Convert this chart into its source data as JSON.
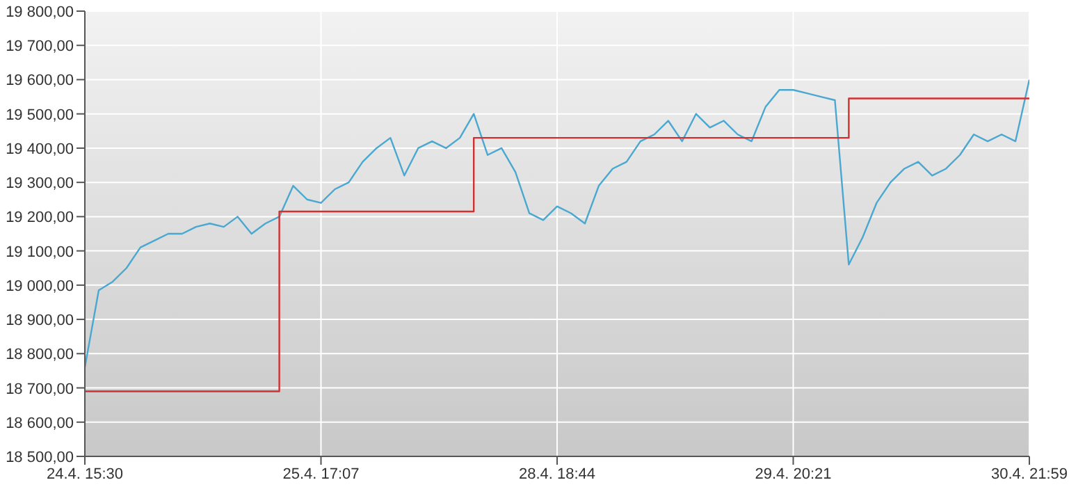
{
  "chart_data": {
    "type": "line",
    "grid": true,
    "marker": "none",
    "ylim": [
      18500,
      19800
    ],
    "categories": [
      "24.4. 15:30",
      null,
      null,
      null,
      null,
      null,
      null,
      null,
      null,
      null,
      null,
      null,
      null,
      null,
      null,
      null,
      null,
      "25.4. 17:07",
      null,
      null,
      null,
      null,
      null,
      null,
      null,
      null,
      null,
      null,
      null,
      null,
      null,
      null,
      null,
      null,
      "28.4. 18:44",
      null,
      null,
      null,
      null,
      null,
      null,
      null,
      null,
      null,
      null,
      null,
      null,
      null,
      null,
      null,
      null,
      "29.4. 20:21",
      null,
      null,
      null,
      null,
      null,
      null,
      null,
      null,
      null,
      null,
      null,
      null,
      null,
      null,
      null,
      null,
      "30.4. 21:59"
    ],
    "yticks": [
      {
        "value": 18500,
        "label": "18 500,00"
      },
      {
        "value": 18600,
        "label": "18 600,00"
      },
      {
        "value": 18700,
        "label": "18 700,00"
      },
      {
        "value": 18800,
        "label": "18 800,00"
      },
      {
        "value": 18900,
        "label": "18 900,00"
      },
      {
        "value": 19000,
        "label": "19 000,00"
      },
      {
        "value": 19100,
        "label": "19 100,00"
      },
      {
        "value": 19200,
        "label": "19 200,00"
      },
      {
        "value": 19300,
        "label": "19 300,00"
      },
      {
        "value": 19400,
        "label": "19 400,00"
      },
      {
        "value": 19500,
        "label": "19 500,00"
      },
      {
        "value": 19600,
        "label": "19 600,00"
      },
      {
        "value": 19700,
        "label": "19 700,00"
      },
      {
        "value": 19800,
        "label": "19 800,00"
      }
    ],
    "series": [
      {
        "color": "#4aa8d0",
        "values": [
          18760,
          18985,
          19010,
          19050,
          19110,
          19130,
          19150,
          19150,
          19170,
          19180,
          19170,
          19200,
          19150,
          19180,
          19200,
          19290,
          19250,
          19240,
          19280,
          19300,
          19360,
          19400,
          19430,
          19320,
          19400,
          19420,
          19400,
          19430,
          19500,
          19380,
          19400,
          19330,
          19210,
          19190,
          19230,
          19210,
          19180,
          19290,
          19340,
          19360,
          19420,
          19440,
          19480,
          19420,
          19500,
          19460,
          19480,
          19440,
          19420,
          19520,
          19570,
          19570,
          19560,
          19550,
          19540,
          19060,
          19140,
          19240,
          19300,
          19340,
          19360,
          19320,
          19340,
          19380,
          19440,
          19420,
          19440,
          19420,
          19600
        ]
      },
      {
        "type": "step",
        "color": "#d03030",
        "values": [
          18690,
          18690,
          18690,
          18690,
          18690,
          18690,
          18690,
          18690,
          18690,
          18690,
          18690,
          18690,
          18690,
          18690,
          19215,
          19215,
          19215,
          19215,
          19215,
          19215,
          19215,
          19215,
          19215,
          19215,
          19215,
          19215,
          19215,
          19215,
          19430,
          19430,
          19430,
          19430,
          19430,
          19430,
          19430,
          19430,
          19430,
          19430,
          19430,
          19430,
          19430,
          19430,
          19430,
          19430,
          19430,
          19430,
          19430,
          19430,
          19430,
          19430,
          19430,
          19430,
          19430,
          19430,
          19430,
          19545,
          19545,
          19545,
          19545,
          19545,
          19545,
          19545,
          19545,
          19545,
          19545,
          19545,
          19545,
          19545,
          19545
        ]
      }
    ]
  }
}
